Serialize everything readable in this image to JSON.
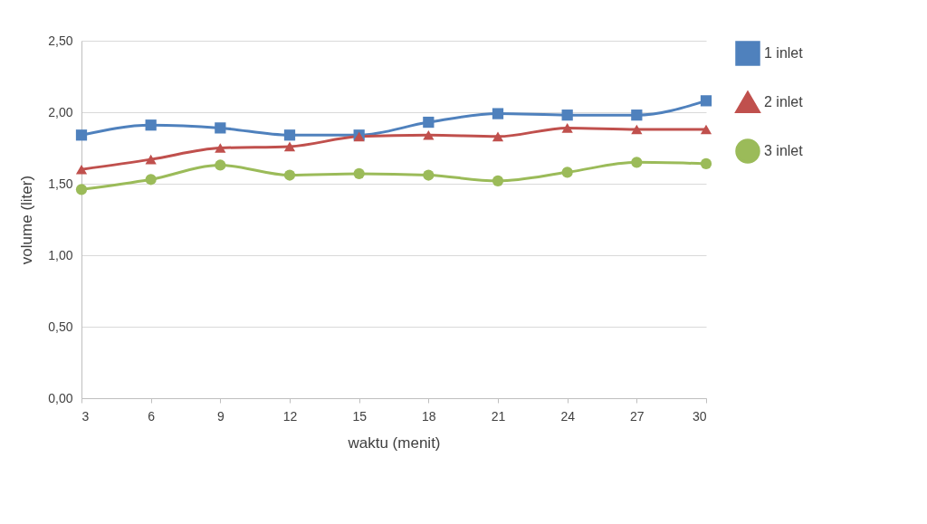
{
  "chart_data": {
    "type": "line",
    "xlabel": "waktu (menit)",
    "ylabel": "volume (liter)",
    "x": [
      3,
      6,
      9,
      12,
      15,
      18,
      21,
      24,
      27,
      30
    ],
    "series": [
      {
        "name": "1 inlet",
        "color": "#4f81bd",
        "marker": "square",
        "values": [
          1.84,
          1.91,
          1.89,
          1.84,
          1.84,
          1.93,
          1.99,
          1.98,
          1.98,
          2.08
        ]
      },
      {
        "name": "2 inlet",
        "color": "#c0504d",
        "marker": "triangle",
        "values": [
          1.6,
          1.67,
          1.75,
          1.76,
          1.83,
          1.84,
          1.83,
          1.89,
          1.88,
          1.88
        ]
      },
      {
        "name": "3 inlet",
        "color": "#9bbb59",
        "marker": "circle",
        "values": [
          1.46,
          1.53,
          1.63,
          1.56,
          1.57,
          1.56,
          1.52,
          1.58,
          1.65,
          1.64
        ]
      }
    ],
    "xlim": [
      3,
      30
    ],
    "xticks": [
      3,
      6,
      9,
      12,
      15,
      18,
      21,
      24,
      27,
      30
    ],
    "ylim": [
      0,
      2.5
    ],
    "yticks": [
      {
        "value": 0,
        "label": "0,00"
      },
      {
        "value": 0.5,
        "label": "0,50"
      },
      {
        "value": 1,
        "label": "1,00"
      },
      {
        "value": 1.5,
        "label": "1,50"
      },
      {
        "value": 2,
        "label": "2,00"
      },
      {
        "value": 2.5,
        "label": "2,50"
      }
    ],
    "grid": "y",
    "legend": "right"
  }
}
